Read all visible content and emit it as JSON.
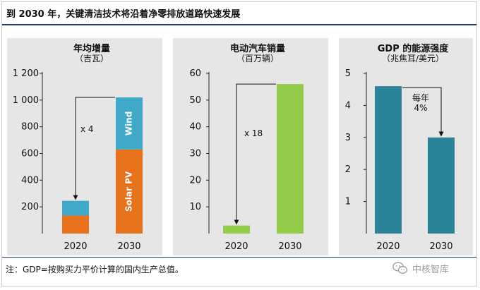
{
  "title": "到 2030 年，关键清洁技术将沿着净零排放道路快速发展",
  "note": "注：GDP=按购买力平价计算的国内生产总值。",
  "brand": {
    "name": "中核智库",
    "icon": "wechat-icon"
  },
  "colors": {
    "solar": "#e8711c",
    "wind": "#41a9c8",
    "ev": "#93cc4b",
    "gdp": "#2b8397",
    "panel": "#e6e6e6",
    "rule": "#1f3a6b"
  },
  "panels": [
    {
      "title": "年均增量",
      "subtitle": "（吉瓦）"
    },
    {
      "title": "电动汽车销量",
      "subtitle": "（百万辆）"
    },
    {
      "title": "GDP 的能源强度",
      "subtitle": "（兆焦耳/美元）"
    }
  ],
  "chart_data": [
    {
      "type": "bar",
      "stacked": true,
      "title": "年均增量",
      "subtitle": "（吉瓦）",
      "categories": [
        "2020",
        "2030"
      ],
      "series": [
        {
          "name": "Solar PV",
          "values": [
            135,
            630
          ],
          "color": "#e8711c"
        },
        {
          "name": "Wind",
          "values": [
            110,
            390
          ],
          "color": "#41a9c8"
        }
      ],
      "ylim": [
        0,
        1200
      ],
      "yticks": [
        200,
        400,
        600,
        800,
        1000,
        1200
      ],
      "ytick_labels": [
        "200",
        "400",
        "600",
        "800",
        "1 000",
        "1 200"
      ],
      "annotation": {
        "text": "x 4",
        "from": "2020",
        "to": "2030"
      }
    },
    {
      "type": "bar",
      "title": "电动汽车销量",
      "subtitle": "（百万辆）",
      "categories": [
        "2020",
        "2030"
      ],
      "values": [
        3,
        56
      ],
      "color": "#93cc4b",
      "ylim": [
        0,
        60
      ],
      "yticks": [
        10,
        20,
        30,
        40,
        50,
        60
      ],
      "ytick_labels": [
        "10",
        "20",
        "30",
        "40",
        "50",
        "60"
      ],
      "annotation": {
        "text": "x 18",
        "from": "2020",
        "to": "2030"
      }
    },
    {
      "type": "bar",
      "title": "GDP 的能源强度",
      "subtitle": "（兆焦耳/美元）",
      "categories": [
        "2020",
        "2030"
      ],
      "values": [
        4.6,
        3.0
      ],
      "color": "#2b8397",
      "ylim": [
        0,
        5
      ],
      "yticks": [
        1,
        2,
        3,
        4,
        5
      ],
      "ytick_labels": [
        "1",
        "2",
        "3",
        "4",
        "5"
      ],
      "annotation": {
        "lines": [
          "每年",
          "4%"
        ],
        "from": "2020",
        "to": "2030"
      }
    }
  ]
}
